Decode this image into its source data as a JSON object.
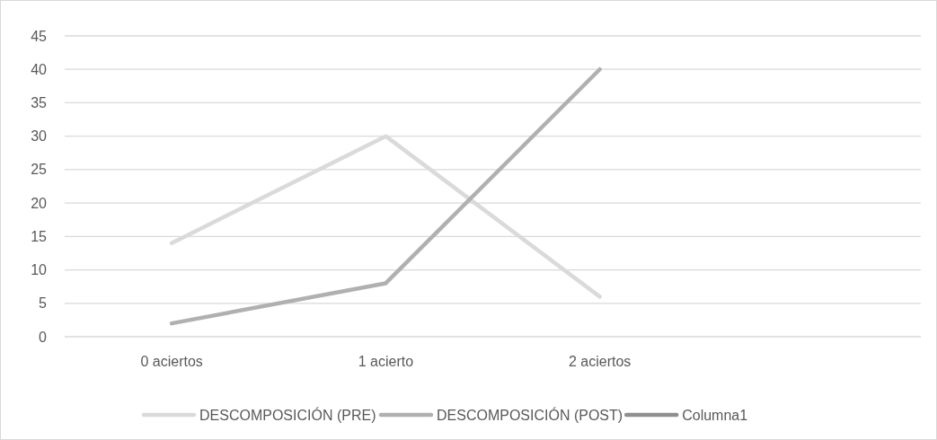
{
  "chart_data": {
    "type": "line",
    "categories": [
      "0 aciertos",
      "1 acierto",
      "2 aciertos",
      null
    ],
    "series": [
      {
        "name": "DESCOMPOSICIÓN (PRE)",
        "color": "#dadada",
        "values": [
          14,
          30,
          6,
          null
        ]
      },
      {
        "name": "DESCOMPOSICIÓN (POST)",
        "color": "#b0b0b0",
        "values": [
          2,
          8,
          40,
          null
        ]
      },
      {
        "name": "Columna1",
        "color": "#8f8f8f",
        "values": [
          null,
          null,
          null,
          null
        ]
      }
    ],
    "ylim": [
      0,
      45
    ],
    "yticks": [
      0,
      5,
      10,
      15,
      20,
      25,
      30,
      35,
      40,
      45
    ],
    "grid": "y",
    "legend": "bottom",
    "marker": "none",
    "line_style": "solid"
  }
}
